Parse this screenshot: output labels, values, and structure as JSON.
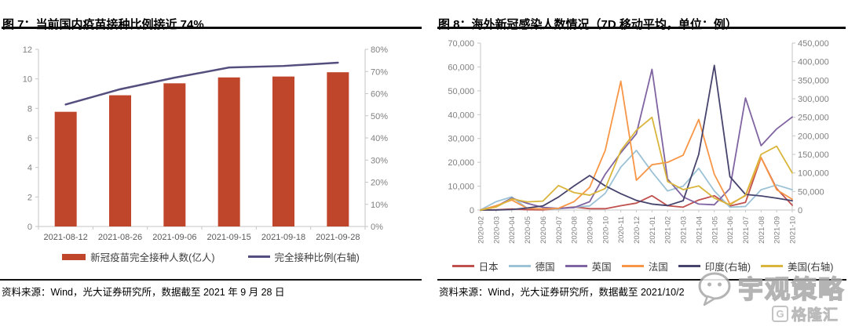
{
  "figure7": {
    "title": "图 7：当前国内疫苗接种比例接近 74%",
    "source": "资料来源：Wind，光大证券研究所，数据截至 2021 年 9 月 28 日",
    "chart_data": {
      "type": "bar",
      "categories": [
        "2021-08-12",
        "2021-08-26",
        "2021-09-06",
        "2021-09-15",
        "2021-09-18",
        "2021-09-28"
      ],
      "series": [
        {
          "name": "新冠疫苗完全接种人数(亿人)",
          "type": "bar",
          "axis": "left",
          "color": "#C0462B",
          "values": [
            7.77,
            8.89,
            9.7,
            10.1,
            10.16,
            10.45
          ]
        },
        {
          "name": "完全接种比例(右轴)",
          "type": "line",
          "axis": "right",
          "color": "#534E7D",
          "values": [
            55.1,
            62.0,
            67.2,
            71.8,
            72.5,
            74.0
          ]
        }
      ],
      "left_axis": {
        "min": 0,
        "max": 12,
        "tick_labels": [
          "0",
          "2",
          "4",
          "6",
          "8",
          "10",
          "12"
        ]
      },
      "right_axis": {
        "min": 0,
        "max": 80,
        "tick_labels": [
          "0%",
          "10%",
          "20%",
          "30%",
          "40%",
          "50%",
          "60%",
          "70%",
          "80%"
        ]
      },
      "grid": false,
      "legend_position": "bottom"
    }
  },
  "figure8": {
    "title": "图 8：海外新冠感染人数情况（7D 移动平均，单位：例）",
    "source": "资料来源：Wind，光大证券研究所，数据截至 2021/10/2",
    "chart_data": {
      "type": "line",
      "x": [
        "2020-02",
        "2020-03",
        "2020-04",
        "2020-05",
        "2020-06",
        "2020-07",
        "2020-08",
        "2020-09",
        "2020-10",
        "2020-11",
        "2020-12",
        "2021-01",
        "2021-02",
        "2021-03",
        "2021-04",
        "2021-05",
        "2021-06",
        "2021-07",
        "2021-08",
        "2021-09",
        "2021-10"
      ],
      "series": [
        {
          "name": "日本",
          "axis": "left",
          "color": "#C0504D",
          "values": [
            20,
            100,
            450,
            120,
            60,
            600,
            1300,
            550,
            550,
            1800,
            2900,
            6000,
            1800,
            1200,
            4200,
            6000,
            1700,
            3200,
            22000,
            9000,
            2000
          ]
        },
        {
          "name": "德国",
          "axis": "left",
          "color": "#9CC2D6",
          "values": [
            60,
            3500,
            5500,
            700,
            400,
            450,
            1200,
            1700,
            7000,
            18000,
            25000,
            16000,
            8000,
            10000,
            17500,
            8000,
            1200,
            1500,
            8500,
            10500,
            8500
          ]
        },
        {
          "name": "英国",
          "axis": "left",
          "color": "#8064A2",
          "values": [
            5,
            1500,
            5000,
            2800,
            1100,
            700,
            1000,
            3500,
            15000,
            24000,
            32000,
            59000,
            13000,
            5500,
            2500,
            2200,
            9000,
            47000,
            27000,
            34000,
            39000
          ]
        },
        {
          "name": "法国",
          "axis": "left",
          "color": "#F79646",
          "values": [
            10,
            1800,
            4200,
            700,
            450,
            700,
            3500,
            9500,
            25000,
            54000,
            12500,
            19000,
            20000,
            23000,
            38000,
            15000,
            2500,
            6000,
            22000,
            8500,
            4500
          ]
        },
        {
          "name": "印度(右轴)",
          "axis": "right",
          "color": "#46436C",
          "values": [
            0,
            100,
            1300,
            5500,
            11000,
            35000,
            65000,
            93000,
            65000,
            44000,
            26000,
            16000,
            12000,
            25000,
            150000,
            390000,
            90000,
            42000,
            38000,
            32000,
            25000
          ]
        },
        {
          "name": "美国(右轴)",
          "axis": "right",
          "color": "#D9B53C",
          "values": [
            15,
            8000,
            30000,
            22000,
            24000,
            66000,
            47000,
            40000,
            58000,
            160000,
            215000,
            250000,
            77000,
            55000,
            65000,
            32000,
            14000,
            40000,
            150000,
            172000,
            100000
          ]
        }
      ],
      "left_axis": {
        "min": 0,
        "max": 70000,
        "tick_labels": [
          "0",
          "10,000",
          "20,000",
          "30,000",
          "40,000",
          "50,000",
          "60,000",
          "70,000"
        ]
      },
      "right_axis": {
        "min": 0,
        "max": 450000,
        "tick_labels": [
          "0",
          "50,000",
          "100,000",
          "150,000",
          "200,000",
          "250,000",
          "300,000",
          "350,000",
          "400,000",
          "450,000"
        ]
      },
      "grid": false,
      "legend_position": "bottom"
    }
  },
  "watermark": {
    "wechat_label": "宇观策略",
    "brand": "格隆汇",
    "brand_badge": "G",
    "color": "#A8A8A8"
  },
  "style": {
    "axis_line_color": "#C6C6C6",
    "axis_label_color": "#808080",
    "x_label_color_fig7": "#595959"
  }
}
